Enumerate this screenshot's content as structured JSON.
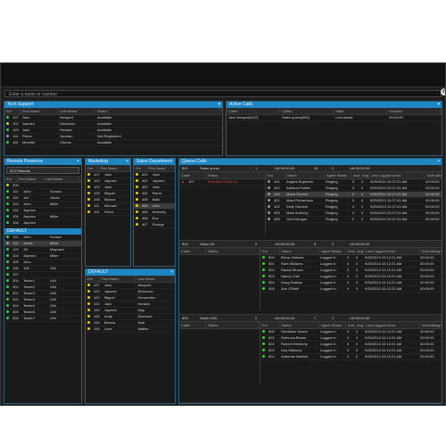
{
  "search": {
    "placeholder": "Enter a name or number"
  },
  "colors": {
    "accent": "#1f86c4",
    "green": "#3bd13b",
    "yellow": "#e6d21a",
    "grey": "#9a9a9a",
    "red": "#e04040"
  },
  "tech_support": {
    "title": "Tech Support",
    "columns": [
      "Ext",
      "First Name",
      "Last Name",
      "Status"
    ],
    "rows": [
      {
        "ext": "107",
        "first": "Jack",
        "last": "Newport",
        "status": "Available",
        "dot": "green"
      },
      {
        "ext": "102",
        "first": "Jaymes",
        "last": "Dickinson",
        "status": "Available",
        "dot": "yellow"
      },
      {
        "ext": "103",
        "first": "Jack",
        "last": "Horacio",
        "status": "Available",
        "dot": "green"
      },
      {
        "ext": "114",
        "first": "Pierre",
        "last": "Jourdan",
        "status": "Not Registered",
        "dot": "grey"
      },
      {
        "ext": "115",
        "first": "Monette",
        "last": "Crimes",
        "status": "Available",
        "dot": "green"
      }
    ]
  },
  "active_calls": {
    "title": "Active Calls",
    "columns": [
      "Caller",
      "Callee",
      "State",
      "Duration"
    ],
    "rows": [
      {
        "caller": "Jack Newport[107]",
        "callee": "Sales queue[801]",
        "state": "Connected",
        "duration": "00:00:05"
      }
    ]
  },
  "remote_presence": {
    "title": "Remote Presence",
    "group": "3CX Remote",
    "columns": [
      "Ext",
      "First Name",
      "Last Name"
    ],
    "rows": [
      {
        "ext": "300",
        "first": "",
        "last": "",
        "dot": "yellow"
      },
      {
        "ext": "101",
        "first": "John",
        "last": "Kovacs",
        "dot": "green"
      },
      {
        "ext": "102",
        "first": "Joe",
        "last": "Jones",
        "dot": "green"
      },
      {
        "ext": "103",
        "first": "John",
        "last": "Miller",
        "dot": "green"
      },
      {
        "ext": "104",
        "first": "Jaymes",
        "last": "",
        "dot": "green"
      },
      {
        "ext": "105",
        "first": "Jaymes",
        "last": "Miller",
        "dot": "green"
      },
      {
        "ext": "106",
        "first": "Jaymes",
        "last": "",
        "dot": "green"
      }
    ]
  },
  "default": {
    "title": "DEFAULT",
    "rows": [
      {
        "ext": "101",
        "first": "John",
        "last": "Kovacs",
        "dot": "green"
      },
      {
        "ext": "102",
        "first": "Jamie",
        "last": "Miller",
        "dot": "grey",
        "sel": true
      },
      {
        "ext": "103",
        "first": "Jill",
        "last": "Maynard",
        "dot": "green"
      },
      {
        "ext": "104",
        "first": "Jaymes",
        "last": "Miller",
        "dot": "green"
      },
      {
        "ext": "105",
        "first": "John",
        "last": "",
        "dot": "green"
      },
      {
        "ext": "106",
        "first": "106",
        "last": "106",
        "dot": "green"
      },
      {
        "ext": "107",
        "first": "",
        "last": "",
        "dot": "green"
      },
      {
        "ext": "300",
        "first": "Tester1",
        "last": "UNI",
        "dot": "green"
      },
      {
        "ext": "301",
        "first": "Tester2",
        "last": "UNI",
        "dot": "green"
      },
      {
        "ext": "302",
        "first": "Tester3",
        "last": "UNI",
        "dot": "green"
      },
      {
        "ext": "303",
        "first": "Tester4",
        "last": "UNI",
        "dot": "green"
      },
      {
        "ext": "304",
        "first": "Tester5",
        "last": "UNI",
        "dot": "green"
      },
      {
        "ext": "305",
        "first": "Tester6",
        "last": "UNI",
        "dot": "green"
      },
      {
        "ext": "306",
        "first": "Tester7",
        "last": "UNI",
        "dot": "green"
      }
    ]
  },
  "marketing": {
    "title": "Marketing",
    "columns": [
      "Ext",
      "First Name"
    ],
    "rows": [
      {
        "ext": "107",
        "first": "Jack",
        "dot": "yellow"
      },
      {
        "ext": "102",
        "first": "Jaymes",
        "dot": "yellow"
      },
      {
        "ext": "103",
        "first": "Jack",
        "dot": "yellow"
      },
      {
        "ext": "105",
        "first": "Miguel",
        "dot": "yellow"
      },
      {
        "ext": "106",
        "first": "Bianca",
        "dot": "yellow"
      },
      {
        "ext": "111",
        "first": "Michael",
        "dot": "yellow"
      },
      {
        "ext": "114",
        "first": "Pierre",
        "dot": "yellow"
      }
    ]
  },
  "sales_department": {
    "title": "Sales Department",
    "columns": [
      "Ext",
      "First Name"
    ],
    "rows": [
      {
        "ext": "401",
        "first": "Jack",
        "dot": "yellow"
      },
      {
        "ext": "402",
        "first": "Jaymes",
        "dot": "yellow"
      },
      {
        "ext": "403",
        "first": "Jack",
        "dot": "yellow"
      },
      {
        "ext": "404",
        "first": "Pierre",
        "dot": "yellow"
      },
      {
        "ext": "405",
        "first": "Mark",
        "dot": "yellow"
      },
      {
        "ext": "406",
        "first": "John",
        "dot": "yellow",
        "sel": true
      },
      {
        "ext": "405",
        "first": "Kimberly",
        "dot": "yellow"
      },
      {
        "ext": "406",
        "first": "Eva",
        "dot": "yellow"
      },
      {
        "ext": "407",
        "first": "George",
        "dot": "yellow"
      }
    ]
  },
  "default2": {
    "title": "DEFAULT",
    "columns": [
      "Ext",
      "First Name",
      "Last Name"
    ],
    "rows": [
      {
        "ext": "107",
        "first": "Jack",
        "last": "Newport",
        "dot": "yellow"
      },
      {
        "ext": "102",
        "first": "Jaymes",
        "last": "Dickinson",
        "dot": "yellow"
      },
      {
        "ext": "102",
        "first": "Miguel",
        "last": "Hernandez",
        "dot": "yellow"
      },
      {
        "ext": "103",
        "first": "Jack",
        "last": "Horacio",
        "dot": "yellow"
      },
      {
        "ext": "104",
        "first": "Jaymes",
        "last": "May",
        "dot": "yellow"
      },
      {
        "ext": "105",
        "first": "Andy",
        "last": "Diamond",
        "dot": "yellow"
      },
      {
        "ext": "106",
        "first": "Bianca",
        "last": "Mott",
        "dot": "yellow"
      },
      {
        "ext": "108",
        "first": "Luke",
        "last": "Walker",
        "dot": "yellow"
      }
    ]
  },
  "queue_calls": {
    "title": "Queue Calls",
    "queues": [
      {
        "ext": "801",
        "name": "Sales queue",
        "waiting": "1",
        "longest": "LW:00:00:00",
        "agents": "16",
        "logged": "2",
        "total": "LW:00:00:00",
        "caller_cols": [
          "Caller",
          "Status"
        ],
        "callers": [
          {
            "caller": "107",
            "status": "Required 00:00:03",
            "alert": true
          }
        ],
        "agent_cols": [
          "Ext.",
          "Name",
          "Agent Status",
          "Ans",
          "Avg",
          "Last Logged In/out",
          "Total talking time"
        ],
        "agents_rows": [
          {
            "ext": "401",
            "name": "Angela Roperton",
            "status": "Ringing",
            "ans": "0",
            "avg": "0",
            "last": "9/25/2013 10:27:31 AM",
            "talk": "00:00:00"
          },
          {
            "ext": "402",
            "name": "Adriana Fasten",
            "status": "Ringing",
            "ans": "0",
            "avg": "0",
            "last": "9/25/2013 10:27:41 AM",
            "talk": "00:00:00"
          },
          {
            "ext": "400",
            "name": "Maria Greene",
            "status": "Ringing",
            "ans": "0",
            "avg": "0",
            "last": "9/25/2013 10:27:41 AM",
            "talk": "00:00:00",
            "sel": true
          },
          {
            "ext": "401",
            "name": "Mark Richardson",
            "status": "Ringing",
            "ans": "0",
            "avg": "0",
            "last": "9/25/2013 10:27:41 AM",
            "talk": "00:00:00"
          },
          {
            "ext": "402",
            "name": "Kelly Gardner",
            "status": "Ringing",
            "ans": "0",
            "avg": "0",
            "last": "9/25/2013 10:27:41 AM",
            "talk": "00:00:00"
          },
          {
            "ext": "403",
            "name": "Mark Anthony",
            "status": "Ringing",
            "ans": "0",
            "avg": "0",
            "last": "9/25/2013 10:27:41 AM",
            "talk": "00:00:00"
          },
          {
            "ext": "405",
            "name": "John Morgan",
            "status": "Ringing",
            "ans": "0",
            "avg": "0",
            "last": "9/25/2013 10:27:41 AM",
            "talk": "00:00:00"
          }
        ]
      },
      {
        "ext": "804",
        "name": "Sales UK",
        "waiting": "0",
        "longest": "LW:00:00:00",
        "agents": "5",
        "logged": "2",
        "total": "LW:00:00:02",
        "caller_cols": [
          "Caller",
          "Status"
        ],
        "callers": [],
        "agent_cols": [
          "Ext.",
          "Name",
          "Agent Status",
          "Ans",
          "Avg",
          "Last Logged In/out",
          "Total talking time"
        ],
        "agents_rows": [
          {
            "ext": "500",
            "name": "Elena Volkova",
            "status": "Logged in",
            "ans": "0",
            "avg": "0",
            "last": "9/25/2013 10:12:21 AM",
            "talk": "00:00:00"
          },
          {
            "ext": "501",
            "name": "Ruth Williams",
            "status": "Logged in",
            "ans": "0",
            "avg": "0",
            "last": "9/25/2013 10:12:21 AM",
            "talk": "00:00:00"
          },
          {
            "ext": "502",
            "name": "Rachel Brown",
            "status": "Logged in",
            "ans": "0",
            "avg": "0",
            "last": "9/25/2013 10:12:21 AM",
            "talk": "00:00:00"
          },
          {
            "ext": "503",
            "name": "Nancy Cole",
            "status": "Logged in",
            "ans": "0",
            "avg": "0",
            "last": "9/25/2013 10:12:21 AM",
            "talk": "00:00:00"
          },
          {
            "ext": "504",
            "name": "Doug Ralston",
            "status": "Logged in",
            "ans": "0",
            "avg": "0",
            "last": "9/25/2013 10:12:21 AM",
            "talk": "00:00:00"
          },
          {
            "ext": "505",
            "name": "Ann O'Neill",
            "status": "Logged in",
            "ans": "0",
            "avg": "0",
            "last": "9/25/2013 10:12:21 AM",
            "talk": "00:00:00"
          }
        ]
      },
      {
        "ext": "805",
        "name": "Sales USA",
        "waiting": "0",
        "longest": "LW:00:00:00",
        "agents": "7",
        "logged": "2",
        "total": "LW:00:00:00",
        "caller_cols": [
          "Caller",
          "Status"
        ],
        "callers": [],
        "agent_cols": [
          "Ext.",
          "Name",
          "Agent Status",
          "Ans",
          "Avg",
          "Last Logged In/out",
          "Total talking time"
        ],
        "agents_rows": [
          {
            "ext": "600",
            "name": "Geraldine Moore",
            "status": "Logged in",
            "ans": "0",
            "avg": "0",
            "last": "9/25/2013 10:12:21 AM",
            "talk": "00:00:00"
          },
          {
            "ext": "601",
            "name": "Rebecca Brown",
            "status": "Logged in",
            "ans": "0",
            "avg": "0",
            "last": "9/25/2013 10:12:21 AM",
            "talk": "00:00:00"
          },
          {
            "ext": "602",
            "name": "Robert Wimberly",
            "status": "Logged in",
            "ans": "0",
            "avg": "0",
            "last": "9/25/2013 10:12:21 AM",
            "talk": "00:00:00"
          },
          {
            "ext": "603",
            "name": "Gay Maloney",
            "status": "Logged in",
            "ans": "0",
            "avg": "0",
            "last": "9/25/2013 10:12:21 AM",
            "talk": "00:00:00"
          },
          {
            "ext": "604",
            "name": "Adrienne Bartlett",
            "status": "Logged in",
            "ans": "0",
            "avg": "0",
            "last": "9/25/2013 10:12:21 AM",
            "talk": "00:00:00"
          }
        ]
      }
    ]
  }
}
